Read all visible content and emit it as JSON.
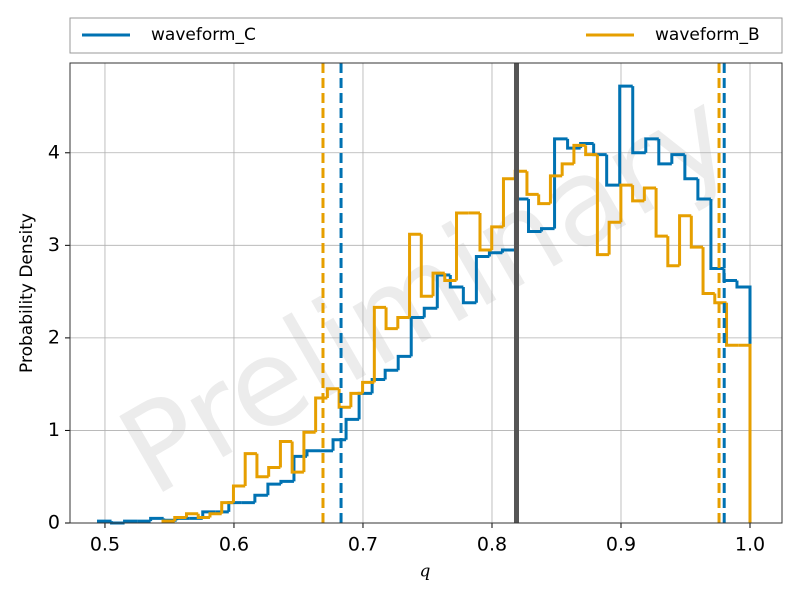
{
  "chart_data": {
    "type": "histogram",
    "xlabel": "q",
    "ylabel": "Probability Density",
    "watermark": "Preliminary",
    "xlim": [
      0.4729,
      1.0248
    ],
    "ylim": [
      0,
      4.97
    ],
    "xticks": [
      0.5,
      0.6,
      0.7,
      0.8,
      0.9,
      {
        "value": 1,
        "label": "1.0"
      }
    ],
    "yticks": [
      0,
      1,
      2,
      3,
      4
    ],
    "grid": true,
    "legend": "top-expanded",
    "series": [
      {
        "name": "waveform_C",
        "color": "#0072b2",
        "bins": [
          0.495,
          0.5051,
          0.5152,
          0.5253,
          0.5354,
          0.5455,
          0.5556,
          0.5657,
          0.5758,
          0.5859,
          0.596,
          0.6061,
          0.6162,
          0.6263,
          0.6364,
          0.6465,
          0.6566,
          0.6667,
          0.6768,
          0.6869,
          0.697,
          0.7071,
          0.7172,
          0.7273,
          0.7374,
          0.7475,
          0.7576,
          0.7677,
          0.7778,
          0.7879,
          0.798,
          0.8081,
          0.8182,
          0.8283,
          0.8384,
          0.8485,
          0.8586,
          0.8687,
          0.8788,
          0.8889,
          0.899,
          0.9091,
          0.9192,
          0.9293,
          0.9394,
          0.9495,
          0.9596,
          0.9697,
          0.9798,
          0.9899,
          1.0
        ],
        "values": [
          0.02,
          0,
          0.02,
          0.02,
          0.05,
          0.03,
          0.05,
          0.05,
          0.12,
          0.12,
          0.22,
          0.22,
          0.3,
          0.42,
          0.45,
          0.72,
          0.78,
          0.78,
          0.9,
          1.12,
          1.4,
          1.55,
          1.65,
          1.8,
          2.22,
          2.32,
          2.68,
          2.55,
          2.38,
          2.88,
          2.92,
          2.95,
          3.5,
          3.15,
          3.18,
          4.15,
          4.05,
          4.1,
          3.98,
          3.65,
          4.72,
          4.0,
          4.15,
          3.88,
          3.98,
          3.72,
          3.5,
          2.75,
          2.62,
          2.55
        ]
      },
      {
        "name": "waveform_B",
        "color": "#e69f00",
        "bins": [
          0.545,
          0.5541,
          0.5632,
          0.5723,
          0.5814,
          0.5905,
          0.5996,
          0.6087,
          0.6178,
          0.6269,
          0.636,
          0.6451,
          0.6542,
          0.6633,
          0.6724,
          0.6815,
          0.6906,
          0.6997,
          0.7088,
          0.7179,
          0.727,
          0.7361,
          0.7452,
          0.7543,
          0.7634,
          0.7725,
          0.7816,
          0.7907,
          0.7998,
          0.8089,
          0.818,
          0.8271,
          0.8362,
          0.8453,
          0.8544,
          0.8635,
          0.8726,
          0.8817,
          0.8908,
          0.8999,
          0.909,
          0.9181,
          0.9272,
          0.9363,
          0.9454,
          0.9545,
          0.9636,
          0.9727,
          0.9818,
          0.9909,
          1.0
        ],
        "values": [
          0.02,
          0.06,
          0.1,
          0.06,
          0.1,
          0.22,
          0.4,
          0.75,
          0.5,
          0.6,
          0.88,
          0.55,
          0.98,
          1.35,
          1.45,
          1.25,
          1.4,
          1.52,
          2.33,
          2.1,
          2.22,
          3.12,
          2.45,
          2.7,
          2.62,
          3.35,
          3.35,
          2.95,
          3.2,
          3.72,
          3.8,
          3.55,
          3.45,
          3.75,
          3.88,
          4.08,
          3.98,
          2.9,
          3.25,
          3.65,
          3.48,
          3.62,
          3.1,
          2.78,
          3.32,
          2.98,
          2.48,
          2.38,
          1.92,
          1.92
        ]
      }
    ],
    "vlines": [
      {
        "value": 0.683,
        "color": "#0072b2",
        "style": "dashed"
      },
      {
        "value": 0.98,
        "color": "#0072b2",
        "style": "dashed"
      },
      {
        "value": 0.669,
        "color": "#e69f00",
        "style": "dashed"
      },
      {
        "value": 0.976,
        "color": "#e69f00",
        "style": "dashed"
      },
      {
        "value": 0.819,
        "color": "#555555",
        "style": "solid"
      }
    ]
  }
}
